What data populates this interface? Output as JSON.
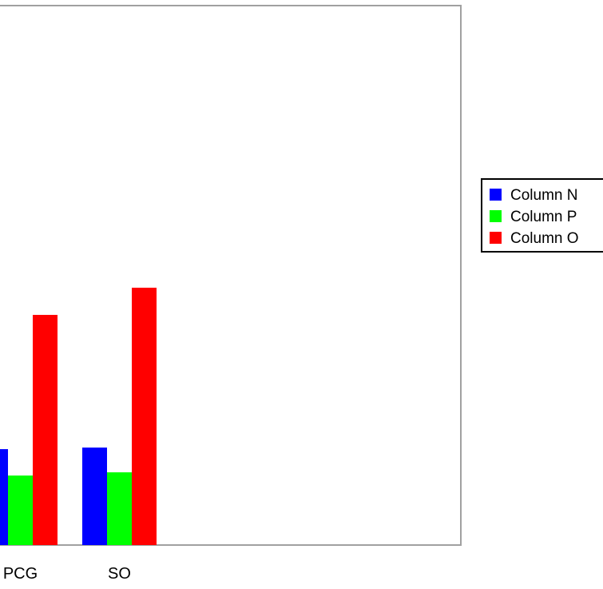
{
  "chart_data": {
    "type": "bar",
    "categories": [
      "PCG",
      "SO"
    ],
    "series": [
      {
        "name": "Column N",
        "color": "#0000ff",
        "values": [
          120,
          122
        ]
      },
      {
        "name": "Column P",
        "color": "#00ff00",
        "values": [
          87,
          91
        ]
      },
      {
        "name": "Column O",
        "color": "#ff0000",
        "values": [
          288,
          322
        ]
      }
    ],
    "ylim": [
      0,
      675
    ],
    "grid": false,
    "legend_position": "right"
  }
}
